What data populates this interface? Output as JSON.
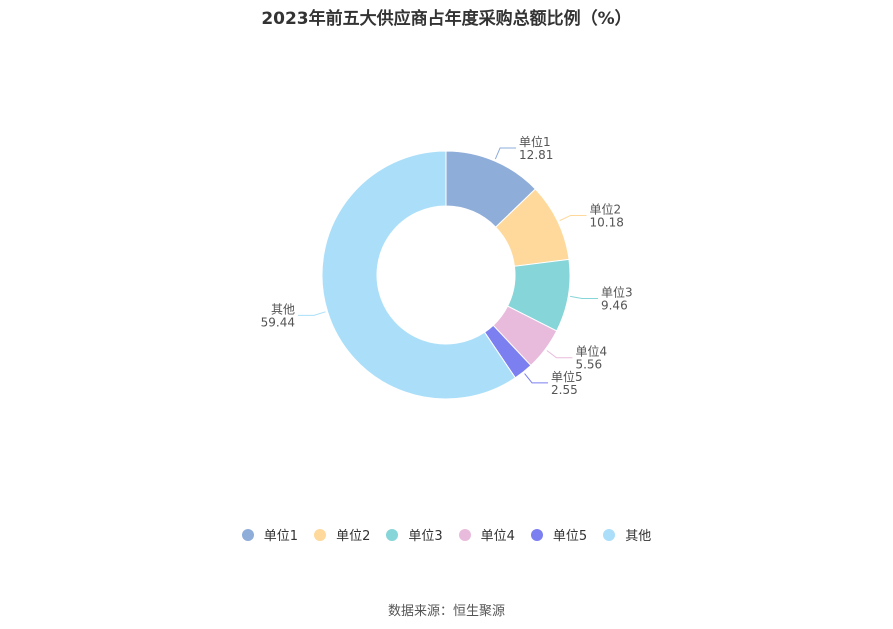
{
  "title": "2023年前五大供应商占年度采购总额比例（%）",
  "source": "数据来源：恒生聚源",
  "chart_data": {
    "type": "pie",
    "donut": true,
    "title": "2023年前五大供应商占年度采购总额比例（%）",
    "legend_position": "bottom",
    "slices": [
      {
        "label": "单位1",
        "value": 12.81,
        "value_text": "12.81",
        "color": "#8eadd9"
      },
      {
        "label": "单位2",
        "value": 10.18,
        "value_text": "10.18",
        "color": "#fed99b"
      },
      {
        "label": "单位3",
        "value": 9.46,
        "value_text": "9.46",
        "color": "#86d5d9"
      },
      {
        "label": "单位4",
        "value": 5.56,
        "value_text": "5.56",
        "color": "#e8bbdc"
      },
      {
        "label": "单位5",
        "value": 2.55,
        "value_text": "2.55",
        "color": "#7b7ff0"
      },
      {
        "label": "其他",
        "value": 59.44,
        "value_text": "59.44",
        "color": "#abdff9"
      }
    ]
  }
}
